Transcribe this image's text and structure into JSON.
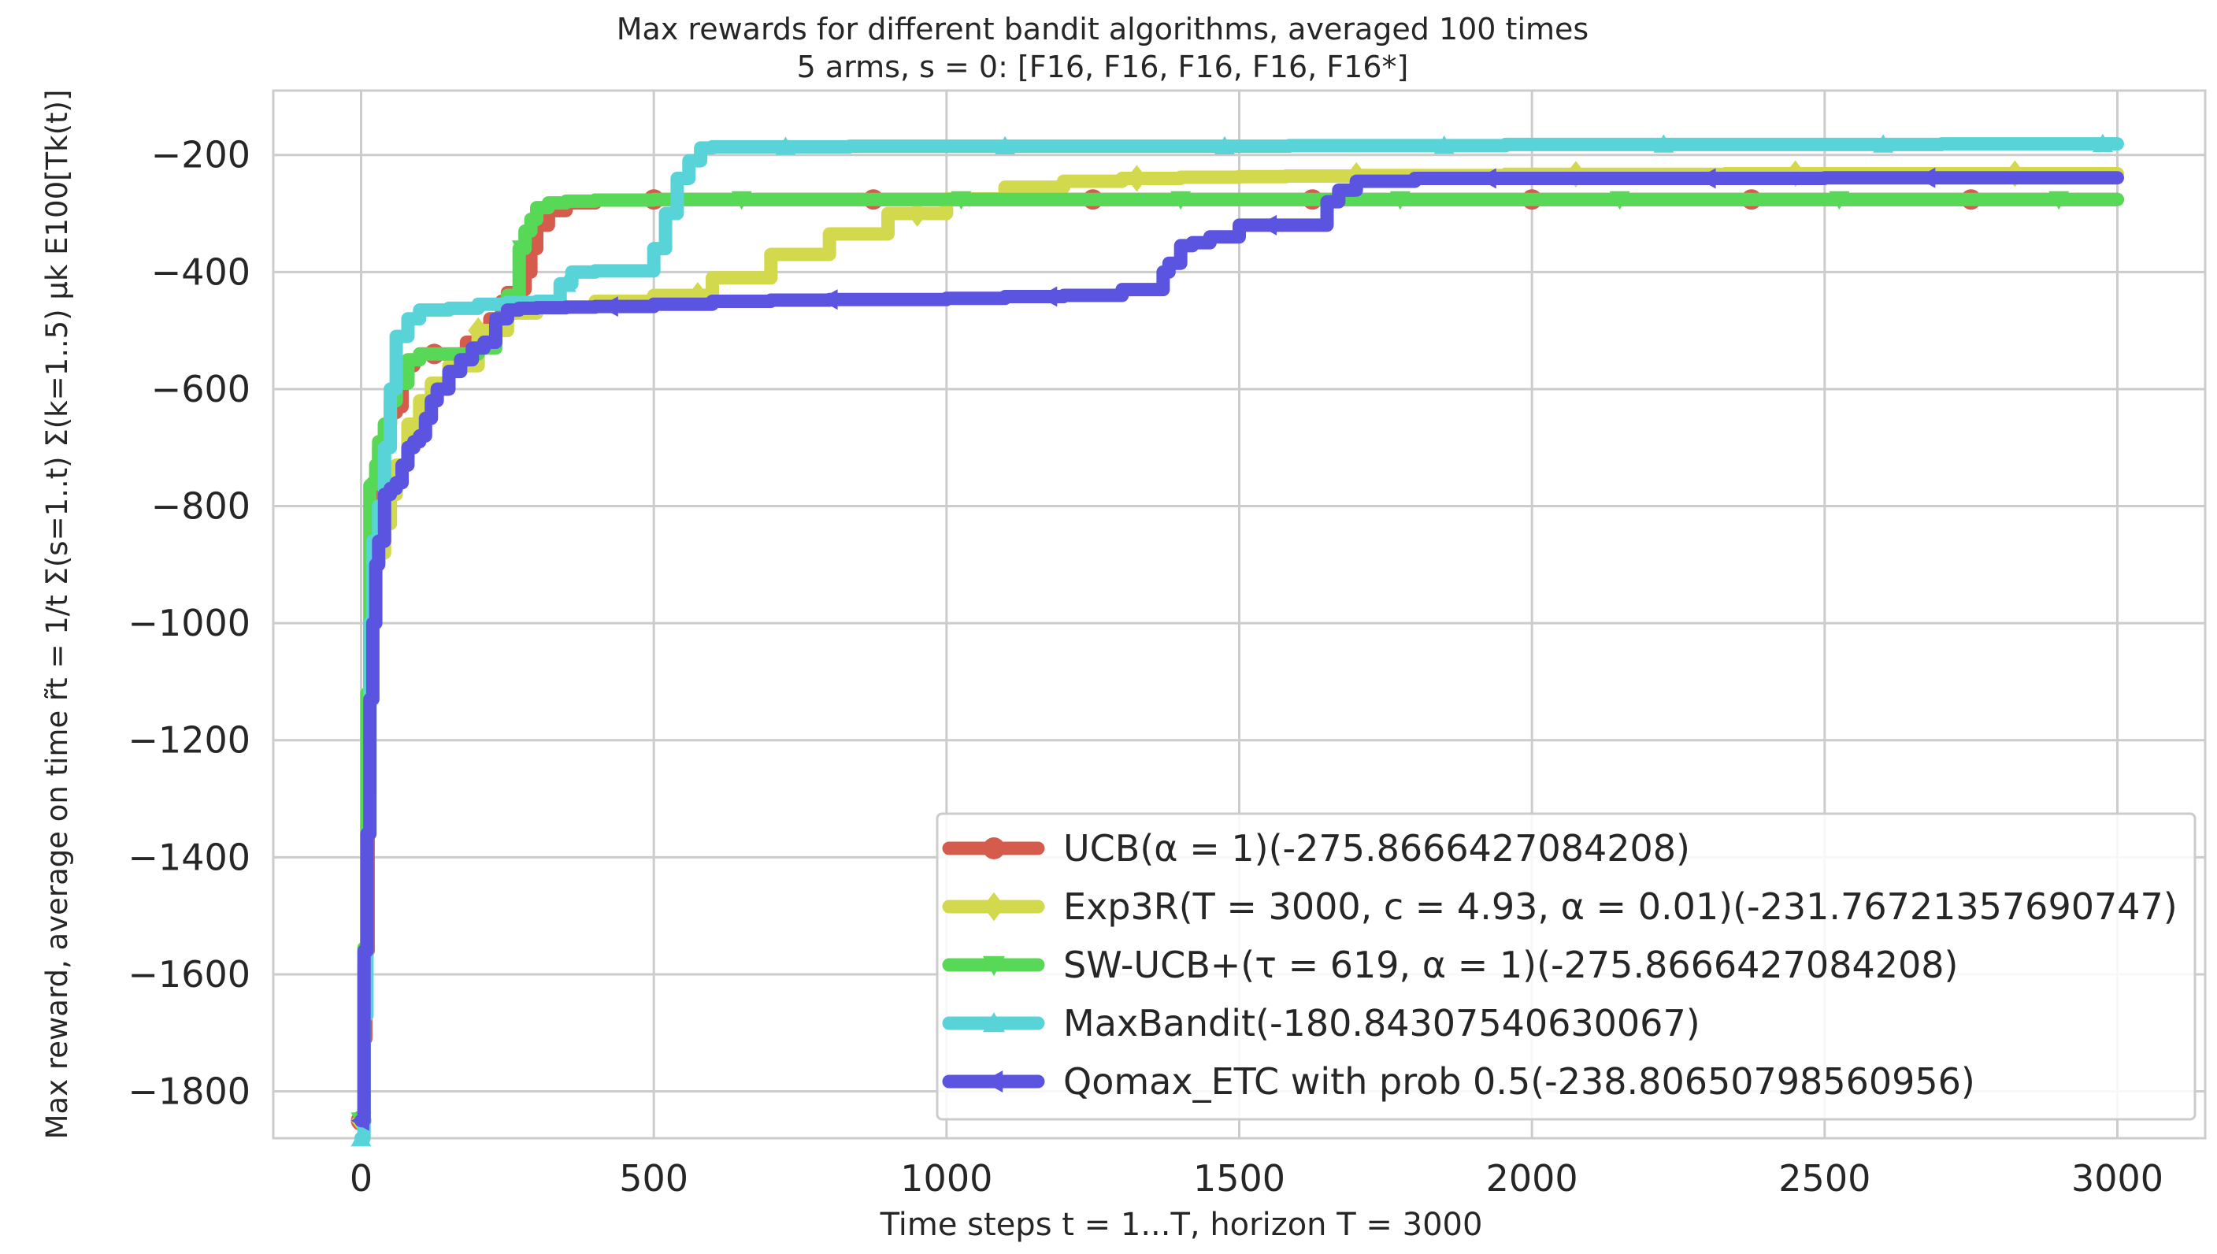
{
  "chart_data": {
    "type": "line",
    "title": "Max rewards for different bandit algorithms, averaged 100 times",
    "subtitle": "5 arms, s = 0: [F16, F16, F16, F16, F16*]",
    "xlabel": "Time steps t = 1...T, horizon T = 3000",
    "ylabel": "Max reward, average on time r̃t = 1/t Σ(s=1..t) Σ(k=1..5) μk E100[Tk(t)]",
    "xlim": [
      -150,
      3150
    ],
    "ylim": [
      -1880,
      -90
    ],
    "xticks": [
      0,
      500,
      1000,
      1500,
      2000,
      2500,
      3000
    ],
    "yticks": [
      -1800,
      -1600,
      -1400,
      -1200,
      -1000,
      -800,
      -600,
      -400,
      -200
    ],
    "grid": true,
    "legend_position": "lower-right",
    "series": [
      {
        "name": "UCB(α = 1)(-275.8666427084208)",
        "color": "#d55c4c",
        "marker": "circle",
        "x": [
          0,
          5,
          8,
          12,
          16,
          20,
          25,
          30,
          40,
          50,
          60,
          70,
          80,
          90,
          100,
          120,
          150,
          180,
          200,
          220,
          240,
          250,
          270,
          280,
          290,
          300,
          320,
          350,
          400,
          500,
          875,
          1250,
          1625,
          2000,
          2375,
          2750,
          3000
        ],
        "y": [
          -1850,
          -1710,
          -1560,
          -1120,
          -893,
          -893,
          -770,
          -700,
          -660,
          -640,
          -630,
          -580,
          -560,
          -550,
          -540,
          -540,
          -540,
          -520,
          -500,
          -480,
          -450,
          -435,
          -430,
          -400,
          -360,
          -320,
          -295,
          -282,
          -277,
          -276,
          -276,
          -276,
          -276,
          -276,
          -276,
          -276,
          -276
        ]
      },
      {
        "name": "Exp3R(T = 3000, c = 4.93, α = 0.01)(-231.76721357690747)",
        "color": "#d2d94c",
        "marker": "diamond",
        "x": [
          0,
          5,
          10,
          15,
          20,
          30,
          40,
          50,
          60,
          80,
          100,
          120,
          150,
          200,
          250,
          300,
          400,
          500,
          600,
          700,
          800,
          900,
          1000,
          1100,
          1200,
          1300,
          1400,
          1500,
          1580,
          1700,
          1955,
          2330,
          2700,
          3000
        ],
        "y": [
          -1850,
          -1590,
          -1290,
          -1000,
          -900,
          -880,
          -830,
          -780,
          -730,
          -660,
          -620,
          -590,
          -560,
          -500,
          -470,
          -460,
          -450,
          -440,
          -410,
          -370,
          -335,
          -300,
          -275,
          -255,
          -245,
          -240,
          -238,
          -237,
          -236,
          -235,
          -233,
          -232,
          -232,
          -232
        ]
      },
      {
        "name": "SW-UCB+(τ = 619, α = 1)(-275.8666427084208)",
        "color": "#58d857",
        "marker": "triangle-down",
        "x": [
          0,
          5,
          10,
          15,
          20,
          25,
          30,
          40,
          50,
          60,
          80,
          100,
          150,
          200,
          230,
          250,
          270,
          280,
          290,
          300,
          320,
          350,
          400,
          500,
          550,
          1000,
          1500,
          2000,
          2500,
          3000
        ],
        "y": [
          -1850,
          -1555,
          -1120,
          -765,
          -760,
          -730,
          -690,
          -660,
          -620,
          -590,
          -550,
          -540,
          -540,
          -530,
          -480,
          -440,
          -360,
          -330,
          -310,
          -290,
          -282,
          -279,
          -277,
          -276,
          -276,
          -276,
          -276,
          -276,
          -276,
          -276
        ]
      },
      {
        "name": "MaxBandit(-180.84307540630067)",
        "color": "#58d4d8",
        "marker": "triangle-up",
        "x": [
          0,
          5,
          10,
          15,
          20,
          30,
          40,
          50,
          60,
          80,
          100,
          150,
          200,
          250,
          300,
          340,
          360,
          400,
          480,
          500,
          520,
          540,
          560,
          580,
          600,
          835,
          1210,
          1585,
          1955,
          2330,
          2700,
          3000
        ],
        "y": [
          -1880,
          -1670,
          -1360,
          -1000,
          -860,
          -800,
          -700,
          -600,
          -510,
          -480,
          -465,
          -462,
          -455,
          -452,
          -450,
          -420,
          -400,
          -398,
          -398,
          -360,
          -300,
          -240,
          -210,
          -188,
          -186,
          -185,
          -185,
          -184,
          -182,
          -182,
          -181,
          -181
        ]
      },
      {
        "name": "Qomax_ETC with prob 0.5(-238.80650798560956)",
        "color": "#5b54e0",
        "marker": "triangle-left",
        "x": [
          0,
          5,
          10,
          15,
          20,
          25,
          30,
          40,
          50,
          60,
          70,
          80,
          90,
          100,
          110,
          120,
          130,
          150,
          170,
          190,
          210,
          230,
          250,
          270,
          300,
          350,
          400,
          500,
          600,
          700,
          800,
          1000,
          1100,
          1200,
          1300,
          1370,
          1380,
          1400,
          1420,
          1450,
          1500,
          1600,
          1650,
          1670,
          1700,
          1800,
          2000,
          2500,
          3000
        ],
        "y": [
          -1850,
          -1560,
          -1360,
          -1130,
          -1000,
          -900,
          -860,
          -780,
          -770,
          -760,
          -730,
          -700,
          -690,
          -680,
          -650,
          -620,
          -600,
          -570,
          -550,
          -530,
          -520,
          -480,
          -465,
          -462,
          -461,
          -460,
          -459,
          -455,
          -450,
          -448,
          -447,
          -445,
          -442,
          -440,
          -430,
          -400,
          -385,
          -355,
          -350,
          -340,
          -320,
          -320,
          -280,
          -260,
          -245,
          -240,
          -240,
          -239,
          -239
        ]
      }
    ]
  }
}
